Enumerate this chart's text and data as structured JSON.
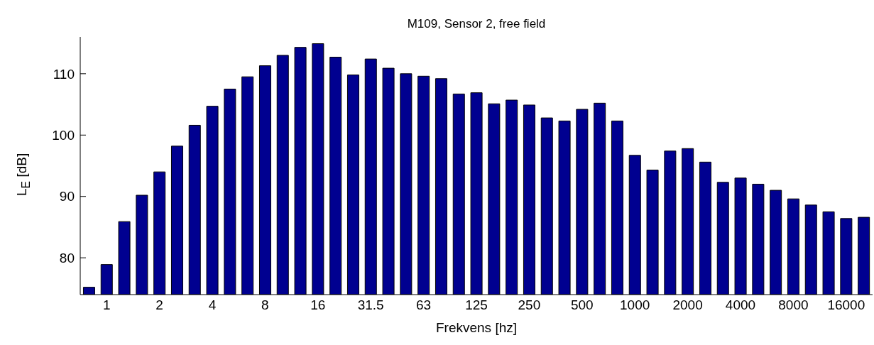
{
  "chart_data": {
    "type": "bar",
    "title": "M109, Sensor 2, free field",
    "xlabel": "Frekvens [hz]",
    "ylabel": "L$_{E}$ [dB]",
    "categories": [
      null,
      "1",
      null,
      null,
      "2",
      null,
      null,
      "4",
      null,
      null,
      "8",
      null,
      null,
      "16",
      null,
      null,
      "31.5",
      null,
      null,
      "63",
      null,
      null,
      "125",
      null,
      null,
      "250",
      null,
      null,
      "500",
      null,
      null,
      "1000",
      null,
      null,
      "2000",
      null,
      null,
      "4000",
      null,
      null,
      "8000",
      null,
      null,
      "16000",
      null
    ],
    "values": [
      75.2,
      78.9,
      85.9,
      90.2,
      94.0,
      98.2,
      101.6,
      104.7,
      107.5,
      109.5,
      111.3,
      113.0,
      114.3,
      114.9,
      112.7,
      109.8,
      112.4,
      110.9,
      110.0,
      109.6,
      109.2,
      106.7,
      106.9,
      105.1,
      105.7,
      104.9,
      102.8,
      102.3,
      104.2,
      105.2,
      102.3,
      96.7,
      94.3,
      97.4,
      97.8,
      95.6,
      92.3,
      93.0,
      92.0,
      91.0,
      89.6,
      88.6,
      87.5,
      86.4,
      86.6
    ],
    "color": "#000090",
    "ylim": [
      74,
      116
    ],
    "yticks": [
      80,
      90,
      100,
      110
    ],
    "grid": false,
    "legend": false
  }
}
